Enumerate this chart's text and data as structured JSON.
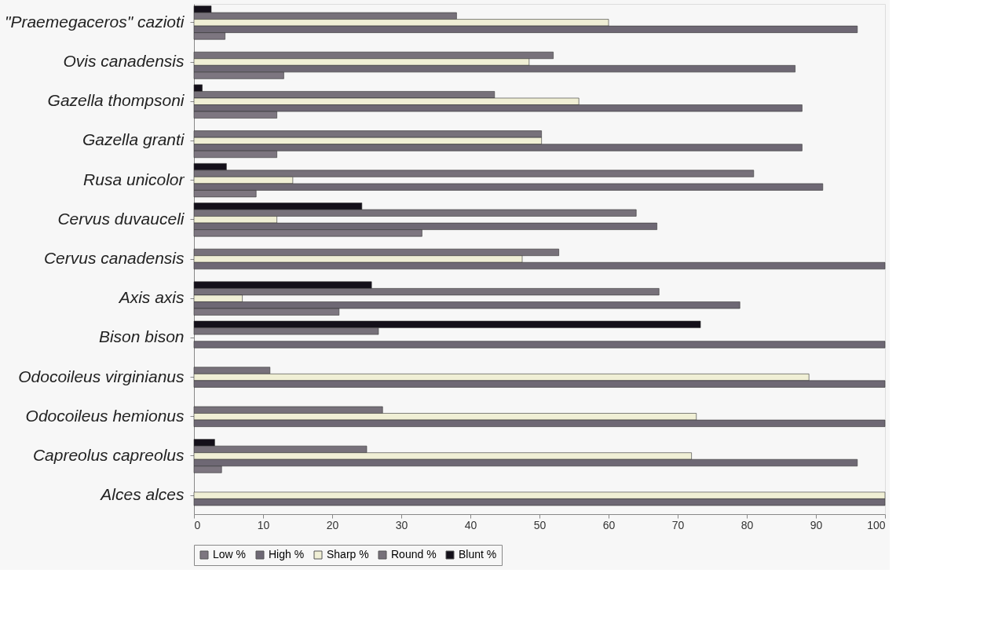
{
  "chart_data": {
    "type": "bar",
    "orientation": "horizontal",
    "categories": [
      "\"Praemegaceros\" cazioti",
      "Ovis canadensis",
      "Gazella thompsoni",
      "Gazella granti",
      "Rusa unicolor",
      "Cervus duvauceli",
      "Cervus canadensis",
      "Axis axis",
      "Bison bison",
      "Odocoileus virginianus",
      "Odocoileus hemionus",
      "Capreolus capreolus",
      "Alces alces"
    ],
    "series": [
      {
        "name": "Blunt %",
        "color": "#14101a",
        "values": [
          2.5,
          0,
          1.2,
          0,
          4.7,
          24.3,
          0,
          25.7,
          73.3,
          0,
          0,
          3,
          0
        ]
      },
      {
        "name": "Round %",
        "color": "#77717a",
        "values": [
          38,
          52,
          43.5,
          50.3,
          81,
          64,
          52.8,
          67.3,
          26.7,
          11,
          27.3,
          25,
          0
        ]
      },
      {
        "name": "Sharp %",
        "color": "#f0efd5",
        "values": [
          60,
          48.5,
          55.7,
          50.3,
          14.3,
          12,
          47.5,
          7,
          0,
          89,
          72.7,
          72,
          100
        ]
      },
      {
        "name": "High %",
        "color": "#6e6874",
        "values": [
          96,
          87,
          88,
          88,
          91,
          67,
          100,
          79,
          100,
          100,
          100,
          96,
          100
        ]
      },
      {
        "name": "Low %",
        "color": "#7d7680",
        "values": [
          4.5,
          13,
          12,
          12,
          9,
          33,
          0,
          21,
          0,
          0,
          0,
          4,
          0
        ]
      }
    ],
    "xlim": [
      0,
      100
    ],
    "xticks": [
      0,
      10,
      20,
      30,
      40,
      50,
      60,
      70,
      80,
      90,
      100
    ],
    "grid": false,
    "legend": "bottom"
  }
}
